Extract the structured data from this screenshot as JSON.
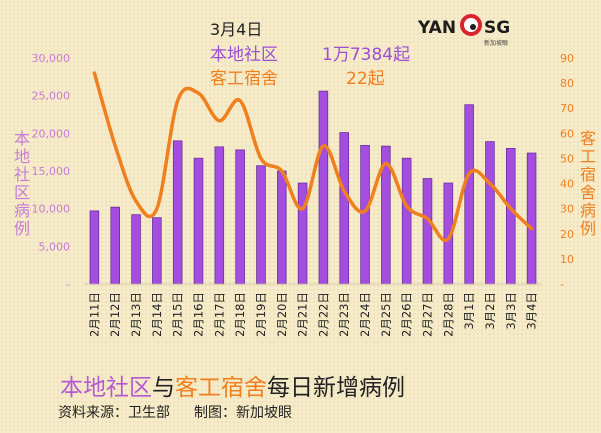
{
  "header": {
    "date": "3月4日",
    "local_label": "本地社区",
    "local_value": "1万7384起",
    "dorm_label": "客工宿舍",
    "dorm_value": "22起"
  },
  "logo": {
    "left_text": "YAN",
    "right_text": "SG",
    "sub_text": "新加坡眼"
  },
  "footer": {
    "title_local": "本地社区",
    "title_mid": "与",
    "title_dorm": "客工宿舍",
    "title_rest": "每日新增病例",
    "source": "资料来源：卫生部",
    "made_by": "制图：新加坡眼"
  },
  "colors": {
    "bar": "#a44ee0",
    "bar_edge": "#6a2fa0",
    "line": "#f07f1e",
    "left_axis": "#c77cdb",
    "right_axis": "#f07f1e"
  },
  "chart_data": {
    "type": "bar+line",
    "title": "本地社区与客工宿舍每日新增病例",
    "ylabel_left": "本地社区病例",
    "ylabel_right": "客工宿舍病例",
    "grid": false,
    "categories": [
      "2月11日",
      "2月12日",
      "2月13日",
      "2月14日",
      "2月15日",
      "2月16日",
      "2月17日",
      "2月18日",
      "2月19日",
      "2月20日",
      "2月21日",
      "2月22日",
      "2月23日",
      "2月24日",
      "2月25日",
      "2月26日",
      "2月27日",
      "2月28日",
      "3月1日",
      "3月2日",
      "3月3日",
      "3月4日"
    ],
    "series": [
      {
        "name": "本地社区",
        "axis": "left",
        "kind": "bar",
        "values": [
          9700,
          10200,
          9200,
          8800,
          19000,
          16700,
          18200,
          17800,
          15700,
          15000,
          13400,
          25600,
          20100,
          18400,
          18300,
          16700,
          14000,
          13400,
          23800,
          18900,
          18000,
          17384
        ]
      },
      {
        "name": "客工宿舍",
        "axis": "right",
        "kind": "line",
        "values": [
          84,
          55,
          33,
          30,
          73,
          76,
          65,
          73,
          50,
          45,
          30,
          55,
          37,
          29,
          48,
          31,
          26,
          18,
          44,
          40,
          30,
          22
        ]
      }
    ],
    "y_left": {
      "min": 0,
      "max": 30000,
      "ticks": [
        0,
        5000,
        10000,
        15000,
        20000,
        25000,
        30000
      ],
      "tick_labels": [
        "-",
        "5,000",
        "10,000",
        "15,000",
        "20,000",
        "25,000",
        "30,000"
      ]
    },
    "y_right": {
      "min": 0,
      "max": 90,
      "ticks": [
        0,
        10,
        20,
        30,
        40,
        50,
        60,
        70,
        80,
        90
      ],
      "tick_labels": [
        "-",
        "10",
        "20",
        "30",
        "40",
        "50",
        "60",
        "70",
        "80",
        "90"
      ]
    }
  }
}
